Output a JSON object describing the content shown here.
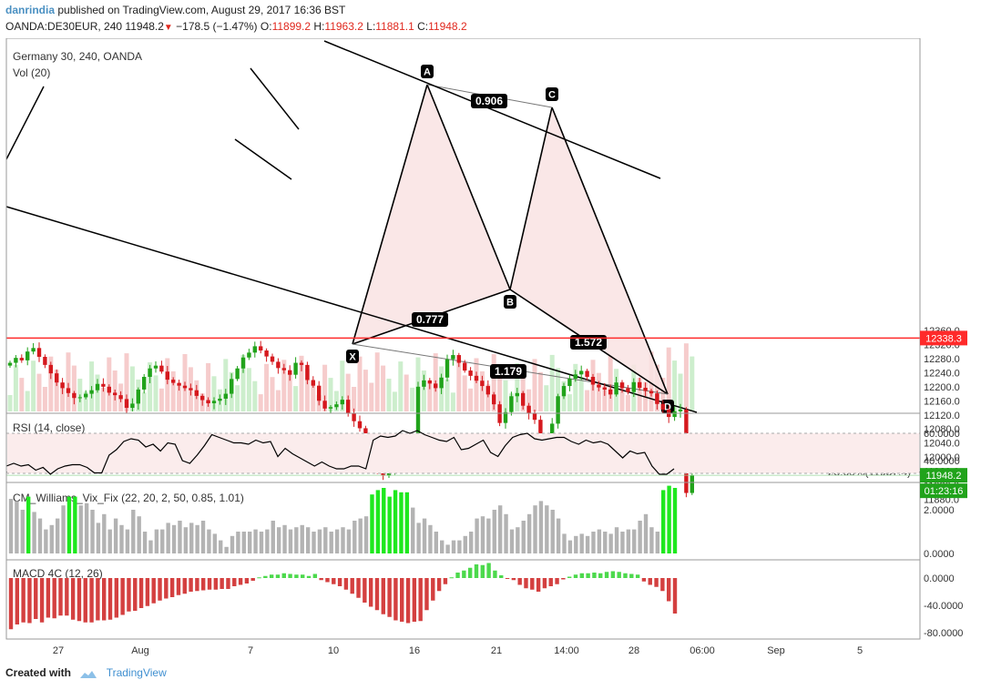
{
  "header": {
    "author": "danrindia",
    "published": "published on TradingView.com, August 29, 2017 16:36 BST",
    "symbol": "OANDA:DE30EUR, 240",
    "last": "11948.2",
    "change": "−178.5 (−1.47%)",
    "open_label": "O:",
    "open": "11899.2",
    "high_label": "H:",
    "high": "11963.2",
    "low_label": "L:",
    "low": "11881.1",
    "close_label": "C:",
    "close": "11948.2"
  },
  "footer": {
    "created_with": "Created with",
    "brand": "TradingView"
  },
  "chart_data": {
    "type": "candlestick",
    "title": "Germany 30, 240, OANDA",
    "volume_label": "Vol (20)",
    "price_ylim": [
      11840,
      12370
    ],
    "price_ticks": [
      "12360.0",
      "12320.0",
      "12280.0",
      "12240.0",
      "12200.0",
      "12160.0",
      "12120.0",
      "12080.0",
      "12040.0",
      "12000.0",
      "11960.0",
      "11920.0",
      "11880.0"
    ],
    "x_ticks": [
      "27",
      "Aug",
      "7",
      "10",
      "16",
      "21",
      "14:00",
      "28",
      "06:00",
      "Sep",
      "5"
    ],
    "last_price_tag": "11948.2",
    "countdown_tag": "01:23:16",
    "resistance_level": "12338.3",
    "fib_label": "23.60%(11957.4)",
    "harmonic_points": [
      {
        "label": "X",
        "price": 11930
      },
      {
        "label": "A",
        "price": 12303
      },
      {
        "label": "B",
        "price": 12015
      },
      {
        "label": "C",
        "price": 12278
      },
      {
        "label": "D",
        "price": 11872
      }
    ],
    "ratios": [
      "0.906",
      "0.777",
      "1.572",
      "1.179"
    ],
    "closes": [
      12268,
      12282,
      12275,
      12300,
      12310,
      12285,
      12262,
      12238,
      12212,
      12196,
      12182,
      12168,
      12170,
      12180,
      12190,
      12208,
      12200,
      12183,
      12176,
      12165,
      12140,
      12152,
      12192,
      12228,
      12252,
      12260,
      12243,
      12220,
      12211,
      12203,
      12196,
      12190,
      12174,
      12162,
      12153,
      12160,
      12166,
      12180,
      12222,
      12252,
      12283,
      12297,
      12315,
      12303,
      12286,
      12271,
      12253,
      12247,
      12234,
      12268,
      12262,
      12219,
      12203,
      12160,
      12138,
      12142,
      12150,
      12163,
      12124,
      12102,
      12082,
      12055,
      12008,
      11970,
      11947,
      11963,
      11985,
      11990,
      11976,
      11980,
      12200,
      12218,
      12209,
      12196,
      12226,
      12278,
      12290,
      12268,
      12246,
      12231,
      12217,
      12202,
      12178,
      12150,
      12097,
      12128,
      12173,
      12182,
      12146,
      12125,
      12106,
      12034,
      12049,
      12095,
      12173,
      12202,
      12223,
      12235,
      12245,
      12228,
      12206,
      12198,
      12192,
      12178,
      12212,
      12196,
      12185,
      12213,
      12197,
      12188,
      12181,
      12151,
      12135,
      12114,
      12130,
      12135,
      11898,
      11948
    ],
    "rsi": {
      "label": "RSI (14, close)",
      "ticks": [
        "60.0000",
        "40.0000"
      ],
      "values": [
        36,
        38,
        36,
        37,
        33,
        35,
        30,
        34,
        36,
        37,
        37,
        35,
        31,
        31,
        44,
        48,
        54,
        56,
        55,
        50,
        52,
        47,
        53,
        52,
        40,
        38,
        44,
        51,
        59,
        57,
        55,
        53,
        53,
        52,
        55,
        53,
        54,
        43,
        49,
        45,
        42,
        39,
        36,
        39,
        36,
        34,
        34,
        36,
        36,
        34,
        55,
        58,
        57,
        58,
        62,
        60,
        62,
        59,
        57,
        55,
        54,
        57,
        48,
        49,
        52,
        55,
        46,
        43,
        51,
        57,
        59,
        60,
        56,
        55,
        56,
        57,
        57,
        54,
        52,
        55,
        53,
        54,
        52,
        47,
        42,
        47,
        45,
        46,
        36,
        30,
        30,
        34
      ]
    },
    "williams_vix": {
      "label": "CM_Williams_Vix_Fix (22, 20, 2, 50, 0.85, 1.01)",
      "ticks": [
        "2.0000",
        "0.0000"
      ],
      "values": [
        2.5,
        2.4,
        2.0,
        2.6,
        1.9,
        1.6,
        1.1,
        1.3,
        1.6,
        2.2,
        2.6,
        2.6,
        2.2,
        2.3,
        2.0,
        1.4,
        1.8,
        1.1,
        1.6,
        1.3,
        1.1,
        2.0,
        1.7,
        1.0,
        0.6,
        1.1,
        1.1,
        1.4,
        1.3,
        1.5,
        1.2,
        1.4,
        1.3,
        1.5,
        1.1,
        0.9,
        0.6,
        0.3,
        0.8,
        1.0,
        1.0,
        1.0,
        1.1,
        1.0,
        1.1,
        1.5,
        1.2,
        1.3,
        1.1,
        1.2,
        1.3,
        1.2,
        1.0,
        1.1,
        1.2,
        1.0,
        1.1,
        1.2,
        1.1,
        1.5,
        1.6,
        1.7,
        2.7,
        2.9,
        3.0,
        2.6,
        2.9,
        2.8,
        2.8,
        2.1,
        1.4,
        1.6,
        1.3,
        1.0,
        0.6,
        0.4,
        0.6,
        0.6,
        0.8,
        1.0,
        1.6,
        1.7,
        1.6,
        2.0,
        2.2,
        1.8,
        1.1,
        1.2,
        1.5,
        1.8,
        2.2,
        2.4,
        2.2,
        2.0,
        1.6,
        0.9,
        0.6,
        0.8,
        0.9,
        0.8,
        1.0,
        1.1,
        1.0,
        0.9,
        1.2,
        1.0,
        1.1,
        1.1,
        1.5,
        1.8,
        1.2,
        1.0,
        2.9,
        3.1,
        3.0
      ]
    },
    "macd": {
      "label": "MACD 4C (12, 26)",
      "ticks": [
        "0.0000",
        "-40.0000",
        "-80.0000"
      ],
      "values": [
        -75,
        -68,
        -65,
        -66,
        -60,
        -65,
        -58,
        -59,
        -55,
        -55,
        -61,
        -63,
        -65,
        -65,
        -62,
        -62,
        -61,
        -58,
        -54,
        -49,
        -48,
        -44,
        -41,
        -37,
        -33,
        -30,
        -28,
        -25,
        -23,
        -20,
        -19,
        -18,
        -17,
        -17,
        -16,
        -16,
        -12,
        -10,
        -8,
        -4,
        1,
        3,
        5,
        5,
        7,
        6,
        5,
        5,
        3,
        6,
        -3,
        -6,
        -9,
        -12,
        -17,
        -23,
        -29,
        -36,
        -42,
        -47,
        -53,
        -57,
        -62,
        -64,
        -66,
        -64,
        -63,
        -47,
        -33,
        -19,
        -9,
        1,
        8,
        11,
        15,
        20,
        19,
        22,
        11,
        4,
        -1,
        -3,
        -10,
        -15,
        -17,
        -20,
        -15,
        -12,
        -9,
        -2,
        2,
        5,
        7,
        7,
        8,
        7,
        9,
        10,
        9,
        7,
        6,
        5,
        -5,
        -10,
        -13,
        -19,
        -34,
        -52
      ]
    },
    "colors": {
      "up": "#21a31b",
      "down": "#d5191e",
      "bg_fill": "#f9e3e3",
      "resistance": "#ff2a2a",
      "vix_high": "#1ee81e",
      "vix_low": "#b3b3b3",
      "macd_up": "#4cd94c",
      "macd_down": "#d44040"
    }
  }
}
